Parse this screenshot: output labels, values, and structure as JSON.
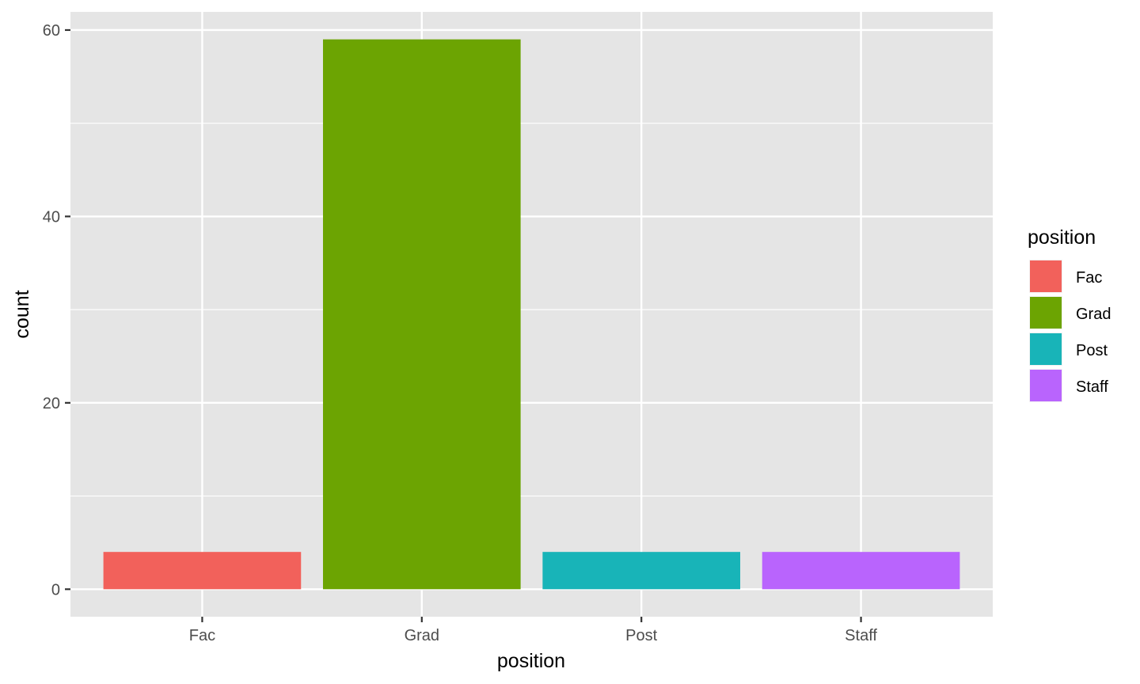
{
  "chart_data": {
    "type": "bar",
    "categories": [
      "Fac",
      "Grad",
      "Post",
      "Staff"
    ],
    "values": [
      4,
      59,
      4,
      4
    ],
    "colors": [
      "#F8766D",
      "#7CAE00",
      "#00BFC4",
      "#C77CFF"
    ],
    "display_colors": [
      "#F2615B",
      "#6CA402",
      "#18B4B8",
      "#B964FD"
    ],
    "xlabel": "position",
    "ylabel": "count",
    "ylim": [
      -2.95,
      61.95
    ],
    "yticks": [
      0,
      20,
      40,
      60
    ],
    "ytick_labels": [
      "0",
      "20",
      "40",
      "60"
    ],
    "y_minor_ticks": [
      10,
      30,
      50
    ],
    "grid": true,
    "panel_background": "#E5E5E5",
    "grid_color": "#FFFFFF",
    "legend": {
      "title": "position",
      "placement": "right",
      "entries": [
        "Fac",
        "Grad",
        "Post",
        "Staff"
      ]
    }
  }
}
